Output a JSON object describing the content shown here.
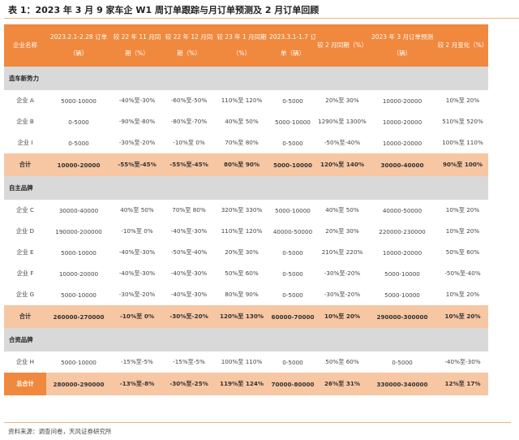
{
  "title": "表 1：2023 年 3 月 9 家车企 W1 周订单跟踪与月订单预测及 2 月订单回顾",
  "header": {
    "columns": [
      "企业名称",
      "2023.2.1-2.28 订单（辆）",
      "较 22 年 11 月同期（%）",
      "较 22 年 12 月同期（%）",
      "较 23 年 1 月同期（%）",
      "2023.3.1-1.7 订单（辆）",
      "较 2 月同期（%）",
      "2023 年 3 月订单预测（辆）",
      "较 2 月变化（%）"
    ]
  },
  "sections": [
    {
      "label": "造车新势力",
      "rows": [
        [
          "企业 A",
          "5000-10000",
          "-40%至-30%",
          "-60%至-50%",
          "110%至 120%",
          "0-5000",
          "20%至 30%",
          "10000-20000",
          "10%至 20%"
        ],
        [
          "企业 B",
          "0-5000",
          "-90%至-80%",
          "-80%至-70%",
          "40%至 50%",
          "5000-10000",
          "1290%至 1300%",
          "10000-20000",
          "510%至 520%"
        ],
        [
          "企业 I",
          "0-5000",
          "-30%至-20%",
          "-10%至 0%",
          "70%至 80%",
          "0-5000",
          "-50%至-40%",
          "10000-20000",
          "100%至 110%"
        ]
      ],
      "total": [
        "合计",
        "10000-20000",
        "-55%至-45%",
        "-55%至-45%",
        "80%至 90%",
        "5000-10000",
        "120%至 140%",
        "30000-40000",
        "90%至 100%"
      ]
    },
    {
      "label": "自主品牌",
      "rows": [
        [
          "企业 C",
          "30000-40000",
          "40%至 50%",
          "70%至 80%",
          "320%至 330%",
          "5000-10000",
          "40%至 50%",
          "40000-50000",
          "10%至 20%"
        ],
        [
          "企业 D",
          "190000-200000",
          "-10%至 0%",
          "-40%至-30%",
          "110%至 120%",
          "40000-50000",
          "20%至 30%",
          "220000-230000",
          "10%至 20%"
        ],
        [
          "企业 E",
          "5000-10000",
          "-40%至-30%",
          "-50%至-40%",
          "20%至 30%",
          "0-5000",
          "210%至 220%",
          "10000-20000",
          "50%至 60%"
        ],
        [
          "企业 F",
          "10000-20000",
          "-40%至-30%",
          "-40%至-30%",
          "50%至 60%",
          "0-5000",
          "-30%至-20%",
          "5000-10000",
          "-50%至-40%"
        ],
        [
          "企业 G",
          "5000-10000",
          "-30%至-20%",
          "-40%至-30%",
          "80%至 90%",
          "0-5000",
          "-30%至-20%",
          "5000-10000",
          "10%至 20%"
        ]
      ],
      "total": [
        "合计",
        "260000-270000",
        "-10%至 0%",
        "-30%至-20%",
        "120%至 130%",
        "60000-70000",
        "10%至 20%",
        "290000-300000",
        "10%至 20%"
      ]
    },
    {
      "label": "合资品牌",
      "rows": [
        [
          "企业 H",
          "5000-10000",
          "-15%至-5%",
          "-15%至-5%",
          "100%至 110%",
          "0-5000",
          "50%至 60%",
          "0-5000",
          "-40%至-30%"
        ]
      ]
    }
  ],
  "grand_total": [
    "总合计",
    "280000-290000",
    "-13%至-8%",
    "-30%至-25%",
    "119%至 124%",
    "70000-80000",
    "26%至 31%",
    "330000-340000",
    "12%至 17%"
  ],
  "source": "资料来源：调查问卷，天风证券研究所",
  "colors": {
    "header": "#f0883e",
    "total": "#f7c6a3",
    "section": "#d9d9d9",
    "rule": "#f0b07a"
  }
}
